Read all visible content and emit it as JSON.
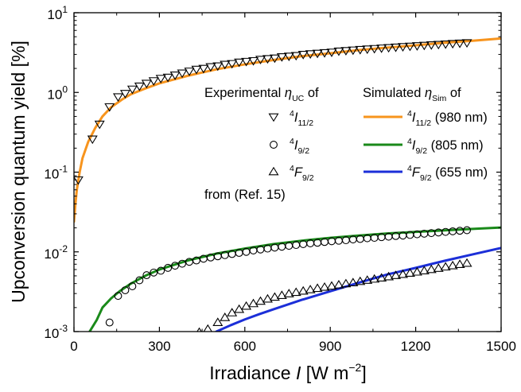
{
  "chart_data": {
    "type": "scatter",
    "xlabel": "Irradiance I [W m-2]",
    "xlabel_parts": {
      "main": "Irradiance ",
      "italic": "I",
      "units": " [W m",
      "exp": "−2",
      "close": "]"
    },
    "ylabel": "Upconversion quantum yield [%]",
    "xlim": [
      0,
      1500
    ],
    "ylim": [
      0.001,
      10
    ],
    "yscale": "log",
    "x_ticks": [
      0,
      300,
      600,
      900,
      1200,
      1500
    ],
    "x_tick_labels": [
      "0",
      "300",
      "600",
      "900",
      "1200",
      "1500"
    ],
    "y_ticks": [
      0.001,
      0.01,
      0.1,
      1,
      10
    ],
    "y_tick_labels": [
      {
        "base": "10",
        "exp": "-3"
      },
      {
        "base": "10",
        "exp": "-2"
      },
      {
        "base": "10",
        "exp": "-1"
      },
      {
        "base": "10",
        "exp": "0"
      },
      {
        "base": "10",
        "exp": "1"
      }
    ],
    "grid": false,
    "legend": {
      "experimental_title": {
        "text": "Experimental ",
        "symbol": "η",
        "sub": "UC",
        "tail": " of"
      },
      "simulated_title": {
        "text": "Simulated ",
        "symbol": "η",
        "sub": "Sim",
        "tail": " of"
      },
      "from_note": "from (Ref. 15)"
    },
    "experimental_series": [
      {
        "name": "4I11/2",
        "label": {
          "sup": "4",
          "letter": "I",
          "sub": "11/2"
        },
        "marker": "triangle-down",
        "x": [
          15,
          65,
          90,
          125,
          155,
          180,
          205,
          230,
          255,
          280,
          305,
          330,
          355,
          380,
          405,
          430,
          455,
          480,
          505,
          530,
          555,
          580,
          605,
          630,
          655,
          680,
          705,
          730,
          755,
          780,
          805,
          830,
          855,
          880,
          905,
          930,
          955,
          980,
          1005,
          1030,
          1055,
          1080,
          1105,
          1130,
          1155,
          1180,
          1205,
          1230,
          1255,
          1280,
          1305,
          1330,
          1355,
          1380
        ],
        "y": [
          0.08,
          0.26,
          0.4,
          0.66,
          0.88,
          0.97,
          1.1,
          1.2,
          1.3,
          1.4,
          1.5,
          1.55,
          1.65,
          1.75,
          1.85,
          1.95,
          2.0,
          2.1,
          2.15,
          2.25,
          2.3,
          2.4,
          2.45,
          2.5,
          2.6,
          2.65,
          2.7,
          2.8,
          2.85,
          2.9,
          3.0,
          3.05,
          3.1,
          3.15,
          3.2,
          3.3,
          3.35,
          3.4,
          3.45,
          3.5,
          3.55,
          3.6,
          3.65,
          3.7,
          3.75,
          3.8,
          3.85,
          3.9,
          3.95,
          4.0,
          4.05,
          4.1,
          4.15,
          4.2
        ]
      },
      {
        "name": "4I9/2",
        "label": {
          "sup": "4",
          "letter": "I",
          "sub": "9/2"
        },
        "marker": "circle",
        "x": [
          125,
          155,
          180,
          205,
          230,
          255,
          280,
          305,
          330,
          355,
          380,
          405,
          430,
          455,
          480,
          505,
          530,
          555,
          580,
          605,
          630,
          655,
          680,
          705,
          730,
          755,
          780,
          805,
          830,
          855,
          880,
          905,
          930,
          955,
          980,
          1005,
          1030,
          1055,
          1080,
          1105,
          1130,
          1155,
          1180,
          1205,
          1230,
          1255,
          1280,
          1305,
          1330,
          1355,
          1380
        ],
        "y": [
          0.0013,
          0.0028,
          0.0033,
          0.0037,
          0.0044,
          0.0051,
          0.0055,
          0.0058,
          0.0063,
          0.0067,
          0.0071,
          0.0075,
          0.0078,
          0.0082,
          0.0085,
          0.0088,
          0.0091,
          0.0094,
          0.0097,
          0.01,
          0.0104,
          0.0107,
          0.011,
          0.0113,
          0.0116,
          0.0119,
          0.0122,
          0.0125,
          0.0128,
          0.013,
          0.0133,
          0.0136,
          0.0138,
          0.014,
          0.0143,
          0.0145,
          0.0148,
          0.015,
          0.0153,
          0.0155,
          0.0158,
          0.016,
          0.0163,
          0.0166,
          0.0169,
          0.0172,
          0.0175,
          0.0178,
          0.0181,
          0.0184,
          0.0187
        ]
      },
      {
        "name": "4F9/2",
        "label": {
          "sup": "4",
          "letter": "F",
          "sub": "9/2"
        },
        "marker": "triangle-up",
        "x": [
          440,
          470,
          505,
          530,
          555,
          580,
          605,
          630,
          655,
          680,
          705,
          730,
          755,
          780,
          805,
          830,
          855,
          880,
          905,
          930,
          955,
          980,
          1005,
          1030,
          1055,
          1080,
          1105,
          1130,
          1155,
          1180,
          1205,
          1230,
          1255,
          1280,
          1305,
          1330,
          1355,
          1380
        ],
        "y": [
          0.00098,
          0.00107,
          0.0013,
          0.0015,
          0.00172,
          0.0019,
          0.00208,
          0.00224,
          0.0024,
          0.00256,
          0.0027,
          0.00284,
          0.00298,
          0.0031,
          0.00322,
          0.00335,
          0.00348,
          0.0036,
          0.00372,
          0.00385,
          0.00398,
          0.0041,
          0.00425,
          0.0044,
          0.00455,
          0.0047,
          0.00487,
          0.00505,
          0.00522,
          0.0054,
          0.00558,
          0.00578,
          0.006,
          0.00622,
          0.00646,
          0.0067,
          0.00695,
          0.0072
        ]
      }
    ],
    "simulated_series": [
      {
        "name": "4I11/2 (980 nm)",
        "label": {
          "sup": "4",
          "letter": "I",
          "sub": "11/2",
          "tail": " (980 nm)"
        },
        "color": "#f7941d",
        "x": [
          0,
          5,
          10,
          20,
          30,
          50,
          75,
          100,
          130,
          170,
          200,
          250,
          300,
          400,
          500,
          600,
          700,
          800,
          900,
          1000,
          1100,
          1200,
          1300,
          1400,
          1500
        ],
        "y": [
          0.024,
          0.04,
          0.06,
          0.1,
          0.15,
          0.24,
          0.36,
          0.5,
          0.65,
          0.82,
          0.95,
          1.12,
          1.3,
          1.62,
          1.95,
          2.25,
          2.55,
          2.85,
          3.1,
          3.4,
          3.65,
          3.9,
          4.2,
          4.45,
          4.75
        ]
      },
      {
        "name": "4I9/2 (805 nm)",
        "label": {
          "sup": "4",
          "letter": "I",
          "sub": "9/2",
          "tail": " (805 nm)"
        },
        "color": "#1a8a1a",
        "x": [
          55,
          80,
          100,
          130,
          160,
          200,
          250,
          300,
          400,
          500,
          600,
          700,
          800,
          900,
          1000,
          1100,
          1200,
          1300,
          1400,
          1500
        ],
        "y": [
          0.001,
          0.0014,
          0.002,
          0.0026,
          0.0032,
          0.004,
          0.005,
          0.006,
          0.0078,
          0.0095,
          0.011,
          0.0125,
          0.0138,
          0.015,
          0.016,
          0.017,
          0.0178,
          0.0186,
          0.0194,
          0.0202
        ]
      },
      {
        "name": "4F9/2 (655 nm)",
        "label": {
          "sup": "4",
          "letter": "F",
          "sub": "9/2",
          "tail": " (655 nm)"
        },
        "color": "#1c2fd8",
        "x": [
          500,
          550,
          600,
          650,
          700,
          800,
          900,
          1000,
          1100,
          1200,
          1300,
          1400,
          1500
        ],
        "y": [
          0.001,
          0.0012,
          0.00142,
          0.00165,
          0.0019,
          0.0025,
          0.0032,
          0.0041,
          0.0052,
          0.0063,
          0.0077,
          0.0093,
          0.0112
        ]
      }
    ]
  }
}
